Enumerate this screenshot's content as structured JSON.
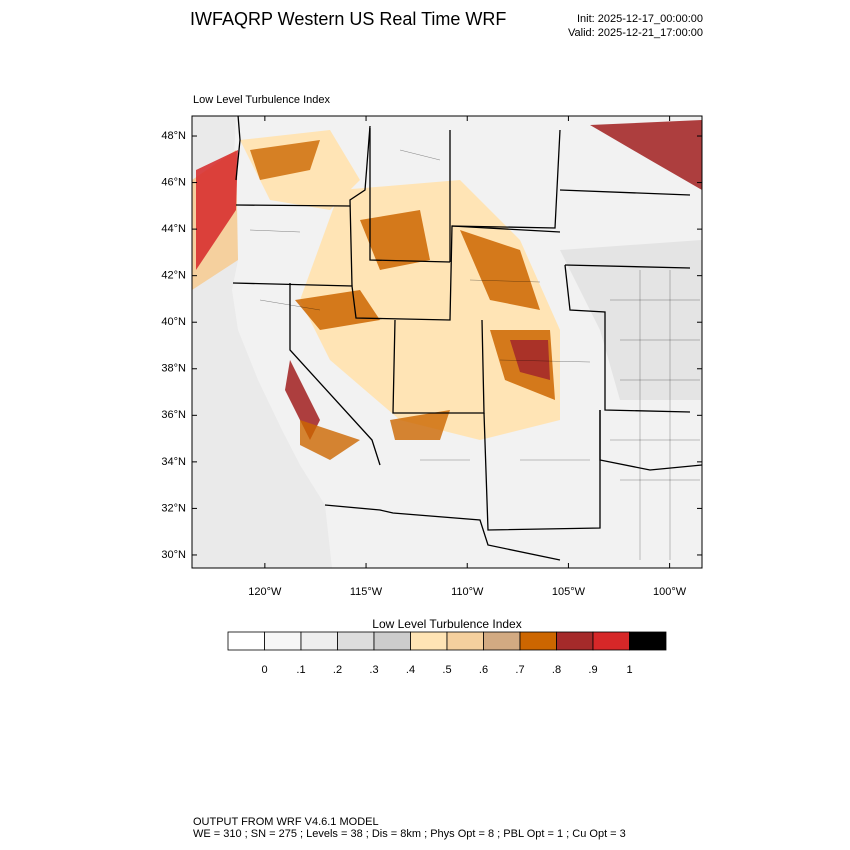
{
  "header": {
    "title": "IWFAQRP Western US Real Time WRF",
    "init": "Init: 2025-12-17_00:00:00",
    "valid": "Valid: 2025-12-21_17:00:00"
  },
  "map": {
    "subtitle": "Low Level Turbulence Index",
    "lonlim": [
      -123.6,
      -98.4
    ],
    "latlim": [
      29.44,
      48.86
    ],
    "lat_ticks": [
      {
        "value": 48,
        "label": "48°N"
      },
      {
        "value": 46,
        "label": "46°N"
      },
      {
        "value": 44,
        "label": "44°N"
      },
      {
        "value": 42,
        "label": "42°N"
      },
      {
        "value": 40,
        "label": "40°N"
      },
      {
        "value": 38,
        "label": "38°N"
      },
      {
        "value": 36,
        "label": "36°N"
      },
      {
        "value": 34,
        "label": "34°N"
      },
      {
        "value": 32,
        "label": "32°N"
      },
      {
        "value": 30,
        "label": "30°N"
      }
    ],
    "lon_ticks": [
      {
        "value": -120,
        "label": "120°W"
      },
      {
        "value": -115,
        "label": "115°W"
      },
      {
        "value": -110,
        "label": "110°W"
      },
      {
        "value": -105,
        "label": "105°W"
      },
      {
        "value": -100,
        "label": "100°W"
      }
    ]
  },
  "colorbar": {
    "title": "Low Level Turbulence Index",
    "colors": [
      "#ffffff",
      "#f7f7f7",
      "#eeeeee",
      "#dddddd",
      "#cccccc",
      "#ffe4b5",
      "#f5d09e",
      "#d2aa82",
      "#cc6600",
      "#a52a2a",
      "#d62728",
      "#000000"
    ],
    "levels": [
      0,
      {
        "value": 0.1,
        "label": ".1"
      },
      {
        "value": 0.2,
        "label": ".2"
      },
      {
        "value": 0.3,
        "label": ".3"
      },
      {
        "value": 0.4,
        "label": ".4"
      },
      {
        "value": 0.5,
        "label": ".5"
      },
      {
        "value": 0.6,
        "label": ".6"
      },
      {
        "value": 0.7,
        "label": ".7"
      },
      {
        "value": 0.8,
        "label": ".8"
      },
      {
        "value": 0.9,
        "label": ".9"
      },
      1
    ]
  },
  "footer": {
    "line1": "OUTPUT FROM WRF V4.6.1 MODEL",
    "line2": "WE = 310 ; SN = 275 ; Levels = 38 ; Dis = 8km ; Phys Opt = 8 ; PBL Opt = 1 ; Cu Opt = 3"
  }
}
